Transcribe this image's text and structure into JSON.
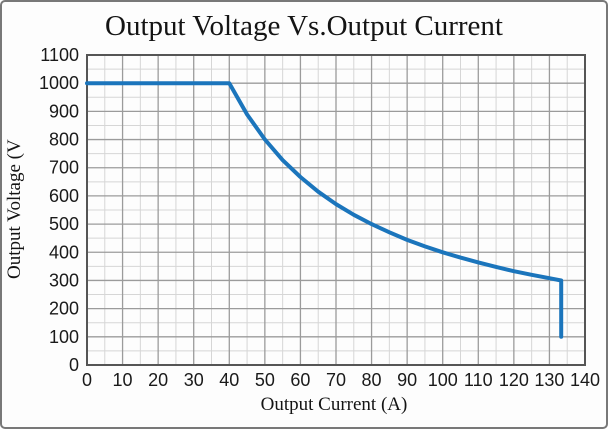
{
  "window": {
    "background": "#fdfdfd",
    "border_color": "#787878"
  },
  "chart_data": {
    "type": "line",
    "title": "Output Voltage Vs.Output Current",
    "xlabel": "Output Current (A)",
    "ylabel": "Output Voltage (V",
    "xlim": [
      0,
      140
    ],
    "ylim": [
      0,
      1100
    ],
    "x_ticks": [
      0,
      10,
      20,
      30,
      40,
      50,
      60,
      70,
      80,
      90,
      100,
      110,
      120,
      130,
      140
    ],
    "y_ticks": [
      0,
      100,
      200,
      300,
      400,
      500,
      600,
      700,
      800,
      900,
      1000,
      1100
    ],
    "x_minor_step": 5,
    "y_minor_step": 50,
    "grid": "major-and-minor",
    "legend": "none",
    "series": [
      {
        "name": "output-voltage-vs-output-current",
        "color": "#1b75bc",
        "points": [
          [
            0,
            1000
          ],
          [
            40,
            1000
          ],
          [
            45,
            889
          ],
          [
            50,
            800
          ],
          [
            55,
            727
          ],
          [
            60,
            667
          ],
          [
            65,
            615
          ],
          [
            70,
            571
          ],
          [
            75,
            533
          ],
          [
            80,
            500
          ],
          [
            85,
            471
          ],
          [
            90,
            444
          ],
          [
            95,
            421
          ],
          [
            100,
            400
          ],
          [
            105,
            381
          ],
          [
            110,
            364
          ],
          [
            115,
            348
          ],
          [
            120,
            333
          ],
          [
            125,
            320
          ],
          [
            130,
            308
          ],
          [
            133.3,
            300
          ],
          [
            133.3,
            100
          ]
        ]
      }
    ],
    "colors": {
      "curve": "#1b75bc",
      "grid_major": "#9b9b9b",
      "grid_minor": "#d6d6d6",
      "plot_border": "#555555",
      "text": "#1a1a1a"
    }
  }
}
